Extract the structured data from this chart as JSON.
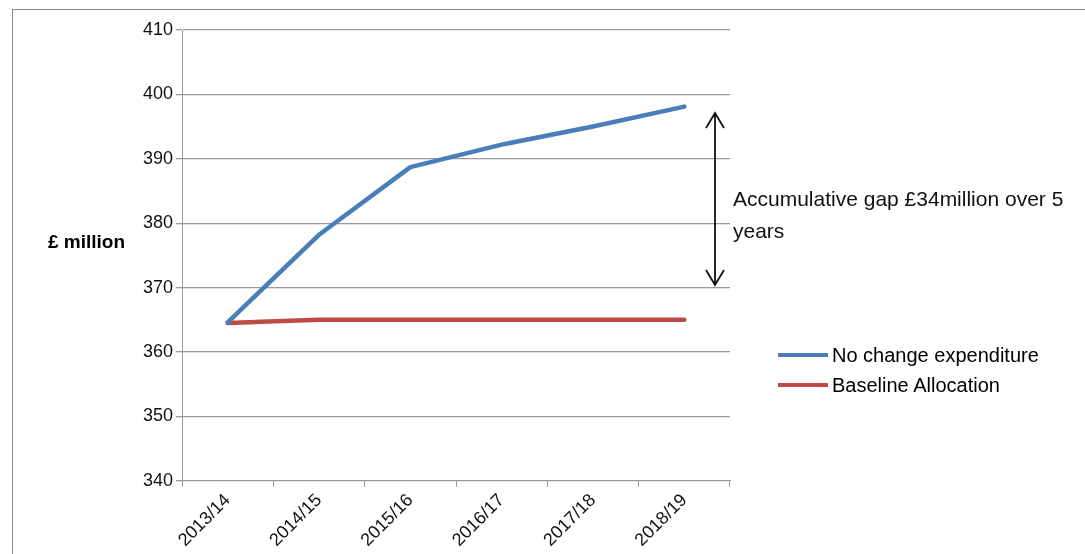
{
  "chart_data": {
    "type": "line",
    "ylabel": "£ million",
    "categories": [
      "2013/14",
      "2014/15",
      "2015/16",
      "2016/17",
      "2017/18",
      "2018/19"
    ],
    "series": [
      {
        "name": "No change expenditure",
        "color": "#4a7ebb",
        "values": [
          364.6,
          378.2,
          388.7,
          392.2,
          395,
          398.1
        ]
      },
      {
        "name": "Baseline Allocation",
        "color": "#be4b48",
        "values": [
          364.5,
          365,
          365,
          365,
          365,
          365
        ]
      }
    ],
    "ylim": [
      340,
      410
    ],
    "yticks": [
      340,
      350,
      360,
      370,
      380,
      390,
      400,
      410
    ],
    "grid": "y",
    "legend": "right",
    "marker": "none",
    "line_style": "solid",
    "annotations": [
      "Accumulative gap £34million over 5 years"
    ]
  }
}
